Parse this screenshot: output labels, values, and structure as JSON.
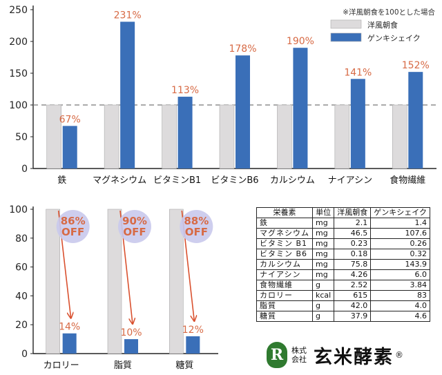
{
  "chart_data": [
    {
      "type": "bar",
      "ylim": [
        0,
        250
      ],
      "yticks": [
        0,
        50,
        100,
        150,
        200,
        250
      ],
      "reference_line": 100,
      "note": "※洋風朝食を100とした場合",
      "legend_position": "top-right",
      "categories": [
        "鉄",
        "マグネシウム",
        "ビタミンB1",
        "ビタミンB6",
        "カルシウム",
        "ナイアシン",
        "食物繊維"
      ],
      "series": [
        {
          "name": "洋風朝食",
          "color": "#dddbdc",
          "values": [
            100,
            100,
            100,
            100,
            100,
            100,
            100
          ]
        },
        {
          "name": "ゲンキシェイク",
          "color": "#3a6fb8",
          "values": [
            67,
            231,
            113,
            178,
            190,
            141,
            152
          ]
        }
      ],
      "labels": [
        "67%",
        "231%",
        "113%",
        "178%",
        "190%",
        "141%",
        "152%"
      ],
      "label_color": "#d76a45"
    },
    {
      "type": "bar",
      "ylim": [
        0,
        100
      ],
      "yticks": [
        0,
        20,
        40,
        60,
        80,
        100
      ],
      "categories": [
        "カロリー",
        "脂質",
        "糖質"
      ],
      "series": [
        {
          "color": "#dddbdc",
          "values": [
            100,
            100,
            100
          ]
        },
        {
          "color": "#3a6fb8",
          "values": [
            14,
            10,
            12
          ]
        }
      ],
      "labels": [
        "14%",
        "10%",
        "12%"
      ],
      "label_color": "#d76a45",
      "badges": [
        [
          "86%",
          "OFF"
        ],
        [
          "90%",
          "OFF"
        ],
        [
          "88%",
          "OFF"
        ]
      ],
      "badge_color": "#c9c9ec",
      "arrow_color": "#d9502e"
    }
  ],
  "table": {
    "headers": [
      "栄養素",
      "単位",
      "洋風朝食",
      "ゲンキシェイク"
    ],
    "rows": [
      [
        "鉄",
        "mg",
        "2.1",
        "1.4"
      ],
      [
        "マグネシウム",
        "mg",
        "46.5",
        "107.6"
      ],
      [
        "ビタミン B1",
        "mg",
        "0.23",
        "0.26"
      ],
      [
        "ビタミン B6",
        "mg",
        "0.18",
        "0.32"
      ],
      [
        "カルシウム",
        "mg",
        "75.8",
        "143.9"
      ],
      [
        "ナイアシン",
        "mg",
        "4.26",
        "6.0"
      ],
      [
        "食物繊維",
        "g",
        "2.52",
        "3.84"
      ],
      [
        "カロリー",
        "kcal",
        "615",
        "83"
      ],
      [
        "脂質",
        "g",
        "42.0",
        "4.0"
      ],
      [
        "糖質",
        "g",
        "37.9",
        "4.6"
      ]
    ]
  },
  "company": {
    "emblem": "R",
    "type": "株式\n会社",
    "name": "玄米酵素",
    "registered": "®"
  }
}
